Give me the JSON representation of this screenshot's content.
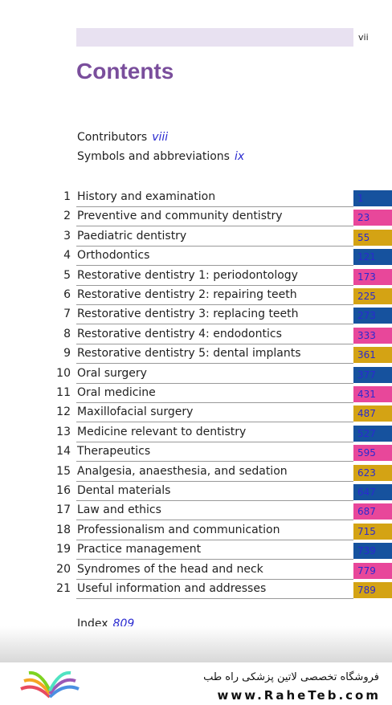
{
  "header": {
    "page_number": "vii",
    "title": "Contents"
  },
  "front_matter": [
    {
      "label": "Contributors",
      "page": "viii"
    },
    {
      "label": "Symbols and abbreviations",
      "page": "ix"
    }
  ],
  "chapters": [
    {
      "number": "1",
      "title": "History and examination",
      "page": "1"
    },
    {
      "number": "2",
      "title": "Preventive and community dentistry",
      "page": "23"
    },
    {
      "number": "3",
      "title": "Paediatric dentistry",
      "page": "55"
    },
    {
      "number": "4",
      "title": "Orthodontics",
      "page": "121"
    },
    {
      "number": "5",
      "title": "Restorative dentistry 1: periodontology",
      "page": "173"
    },
    {
      "number": "6",
      "title": "Restorative dentistry 2: repairing teeth",
      "page": "225"
    },
    {
      "number": "7",
      "title": "Restorative dentistry 3: replacing teeth",
      "page": "273"
    },
    {
      "number": "8",
      "title": "Restorative dentistry 4: endodontics",
      "page": "333"
    },
    {
      "number": "9",
      "title": "Restorative dentistry 5: dental implants",
      "page": "361"
    },
    {
      "number": "10",
      "title": "Oral surgery",
      "page": "377"
    },
    {
      "number": "11",
      "title": "Oral medicine",
      "page": "431"
    },
    {
      "number": "12",
      "title": "Maxillofacial surgery",
      "page": "487"
    },
    {
      "number": "13",
      "title": "Medicine relevant to dentistry",
      "page": "527"
    },
    {
      "number": "14",
      "title": "Therapeutics",
      "page": "595"
    },
    {
      "number": "15",
      "title": "Analgesia, anaesthesia, and sedation",
      "page": "623"
    },
    {
      "number": "16",
      "title": "Dental materials",
      "page": "647"
    },
    {
      "number": "17",
      "title": "Law and ethics",
      "page": "687"
    },
    {
      "number": "18",
      "title": "Professionalism and communication",
      "page": "715"
    },
    {
      "number": "19",
      "title": "Practice management",
      "page": "739"
    },
    {
      "number": "20",
      "title": "Syndromes of the head and neck",
      "page": "779"
    },
    {
      "number": "21",
      "title": "Useful information and addresses",
      "page": "789"
    }
  ],
  "index": {
    "label": "Index",
    "page": "809"
  },
  "footer": {
    "shop": "فروشگاه تخصصی لاتین پزشکی  راه طب",
    "url": "www.RaheTeb.com"
  }
}
